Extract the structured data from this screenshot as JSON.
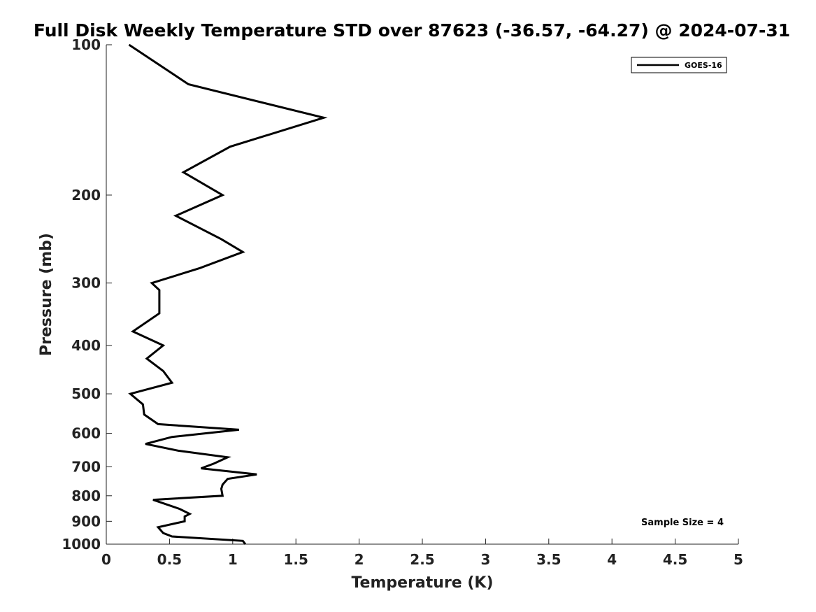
{
  "chart_data": {
    "type": "line",
    "title": "Full Disk Weekly Temperature STD over 87623 (-36.57, -64.27) @ 2024-07-31",
    "xlabel": "Temperature (K)",
    "ylabel": "Pressure (mb)",
    "xlim": [
      0,
      5
    ],
    "ylim": [
      1000,
      100
    ],
    "yscale": "log",
    "x_ticks": [
      "0",
      "0.5",
      "1",
      "1.5",
      "2",
      "2.5",
      "3",
      "3.5",
      "4",
      "4.5",
      "5"
    ],
    "x_tick_values": [
      0,
      0.5,
      1,
      1.5,
      2,
      2.5,
      3,
      3.5,
      4,
      4.5,
      5
    ],
    "y_ticks": [
      "100",
      "200",
      "300",
      "400",
      "500",
      "600",
      "700",
      "800",
      "900",
      "1000"
    ],
    "y_tick_values": [
      100,
      200,
      300,
      400,
      500,
      600,
      700,
      800,
      900,
      1000
    ],
    "grid": false,
    "legend": {
      "placement": "top-right",
      "entries": [
        "GOES-16"
      ]
    },
    "annotations": [
      "Sample Size = 4"
    ],
    "series": [
      {
        "name": "GOES-16",
        "color": "#000000",
        "points": [
          [
            0.18,
            100
          ],
          [
            0.65,
            120
          ],
          [
            1.72,
            140
          ],
          [
            0.98,
            160
          ],
          [
            0.61,
            180
          ],
          [
            0.92,
            200
          ],
          [
            0.55,
            220
          ],
          [
            0.91,
            245
          ],
          [
            1.08,
            260
          ],
          [
            0.74,
            280
          ],
          [
            0.36,
            300
          ],
          [
            0.42,
            310
          ],
          [
            0.42,
            325
          ],
          [
            0.42,
            345
          ],
          [
            0.21,
            375
          ],
          [
            0.45,
            400
          ],
          [
            0.32,
            425
          ],
          [
            0.45,
            450
          ],
          [
            0.52,
            475
          ],
          [
            0.19,
            500
          ],
          [
            0.29,
            525
          ],
          [
            0.3,
            550
          ],
          [
            0.41,
            575
          ],
          [
            1.05,
            590
          ],
          [
            0.52,
            610
          ],
          [
            0.31,
            630
          ],
          [
            0.57,
            650
          ],
          [
            0.96,
            670
          ],
          [
            0.85,
            690
          ],
          [
            0.75,
            705
          ],
          [
            1.19,
            725
          ],
          [
            0.96,
            740
          ],
          [
            0.92,
            760
          ],
          [
            0.91,
            775
          ],
          [
            0.92,
            800
          ],
          [
            0.37,
            815
          ],
          [
            0.58,
            850
          ],
          [
            0.66,
            870
          ],
          [
            0.62,
            880
          ],
          [
            0.62,
            900
          ],
          [
            0.41,
            925
          ],
          [
            0.45,
            950
          ],
          [
            0.52,
            965
          ],
          [
            1.08,
            985
          ],
          [
            1.1,
            1000
          ]
        ]
      }
    ]
  }
}
